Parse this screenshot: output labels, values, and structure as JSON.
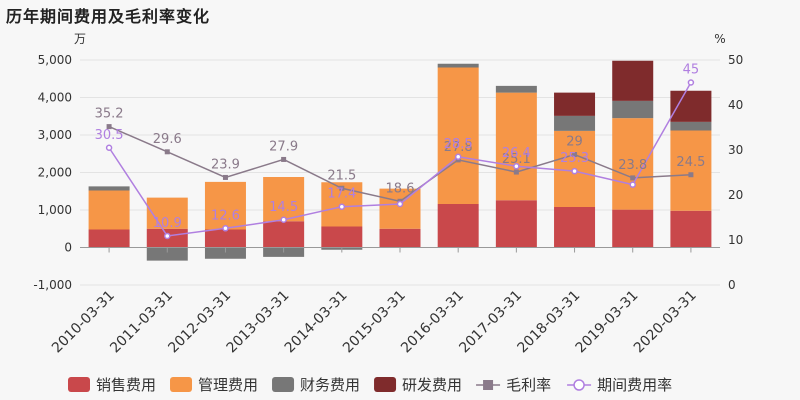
{
  "chart_data": {
    "type": "bar",
    "title": "历年期间费用及毛利率变化",
    "categories": [
      "2010-03-31",
      "2011-03-31",
      "2012-03-31",
      "2013-03-31",
      "2014-03-31",
      "2015-03-31",
      "2016-03-31",
      "2017-03-31",
      "2018-03-31",
      "2019-03-31",
      "2020-03-31"
    ],
    "left_axis": {
      "unit": "万",
      "ylim": [
        -1000,
        5000
      ],
      "ticks": [
        "-1,000",
        "0",
        "1,000",
        "2,000",
        "3,000",
        "4,000",
        "5,000"
      ]
    },
    "right_axis": {
      "unit": "%",
      "ylim": [
        0,
        50
      ],
      "ticks": [
        "0",
        "10",
        "20",
        "30",
        "40",
        "50"
      ]
    },
    "stacked": true,
    "grid": true,
    "legend_position": "bottom",
    "series": [
      {
        "name": "销售费用",
        "kind": "bar",
        "color": "#c9484b",
        "values": [
          480,
          500,
          480,
          700,
          560,
          500,
          1160,
          1260,
          1080,
          1010,
          980
        ]
      },
      {
        "name": "管理费用",
        "kind": "bar",
        "color": "#f69647",
        "values": [
          1040,
          830,
          1270,
          1180,
          1180,
          1070,
          3640,
          2870,
          2030,
          2440,
          2140
        ]
      },
      {
        "name": "财务费用",
        "kind": "bar",
        "color": "#777777",
        "values": [
          110,
          -350,
          -300,
          -250,
          -60,
          0,
          100,
          180,
          400,
          460,
          230
        ]
      },
      {
        "name": "研发费用",
        "kind": "bar",
        "color": "#7f2b2c",
        "values": [
          0,
          0,
          0,
          0,
          0,
          0,
          0,
          0,
          620,
          1070,
          830
        ]
      },
      {
        "name": "毛利率",
        "kind": "line",
        "axis": "right",
        "color": "#8a7a8a",
        "marker": "square",
        "values": [
          35.2,
          29.6,
          23.9,
          27.9,
          21.5,
          18.6,
          27.8,
          25.1,
          29,
          23.8,
          24.5
        ],
        "labels": [
          "35.2",
          "29.6",
          "23.9",
          "27.9",
          "21.5",
          "18.6",
          "27.8",
          "25.1",
          "29",
          "23.8",
          "24.5"
        ]
      },
      {
        "name": "期间费用率",
        "kind": "line",
        "axis": "right",
        "color": "#b07fe0",
        "marker": "circle",
        "values": [
          30.5,
          10.9,
          12.6,
          14.5,
          17.4,
          18,
          28.5,
          26.4,
          25.3,
          22.3,
          45
        ],
        "labels": [
          "30.5",
          "10.9",
          "12.6",
          "14.5",
          "17.4",
          "",
          "28.5",
          "26.4",
          "25.3",
          "",
          "45"
        ]
      }
    ]
  }
}
